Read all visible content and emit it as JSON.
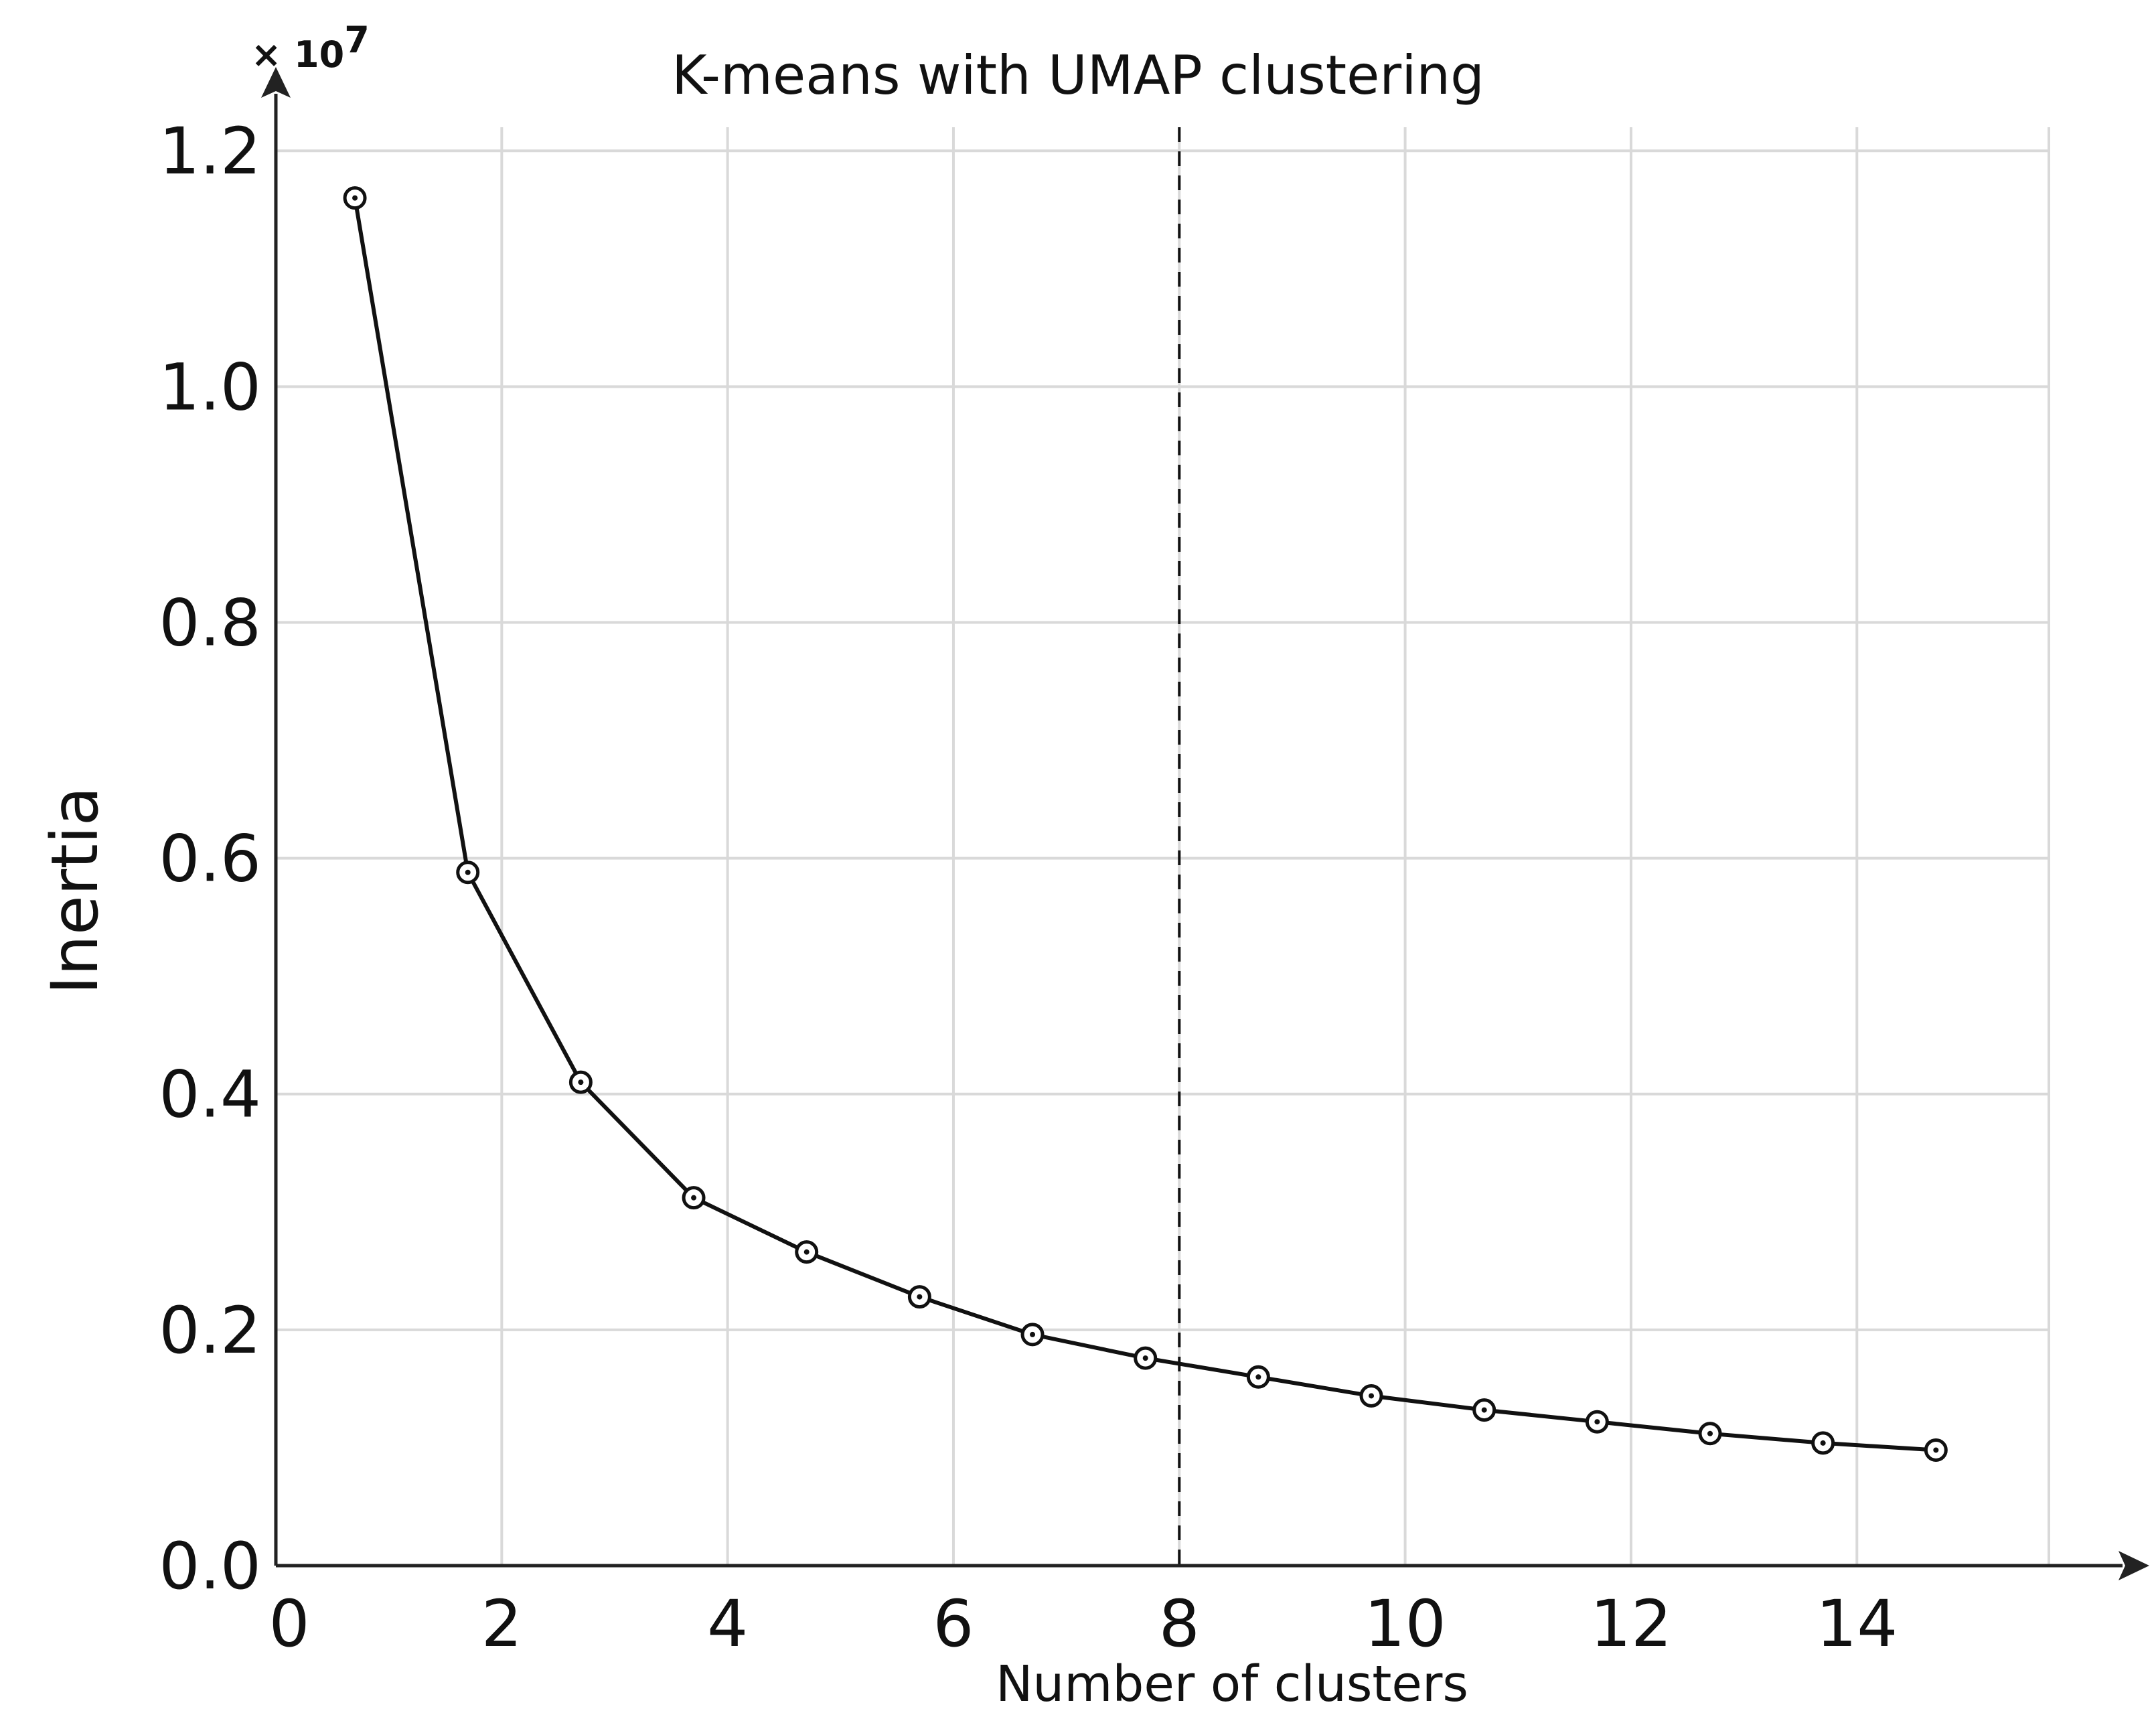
{
  "chart_data": {
    "type": "line",
    "title": "K-means with UMAP clustering",
    "xlabel": "Number of clusters",
    "ylabel": "Inertia",
    "y_multiplier_label": "× 10",
    "y_multiplier_exponent": "7",
    "xlim": [
      0,
      15.7
    ],
    "ylim": [
      0,
      1.22
    ],
    "xticks": [
      0,
      2,
      4,
      6,
      8,
      10,
      12,
      14
    ],
    "yticks": [
      0.0,
      0.2,
      0.4,
      0.6,
      0.8,
      1.0,
      1.2
    ],
    "xtick_labels": [
      "0",
      "2",
      "4",
      "6",
      "8",
      "10",
      "12",
      "14"
    ],
    "ytick_labels": [
      "0.0",
      "0.2",
      "0.4",
      "0.6",
      "0.8",
      "1.0",
      "1.2"
    ],
    "grid": true,
    "reference_line_x": 8,
    "series": [
      {
        "x": [
          0.7,
          1.7,
          2.7,
          3.7,
          4.7,
          5.7,
          6.7,
          7.7,
          8.7,
          9.7,
          10.7,
          11.7,
          12.7,
          13.7,
          14.7
        ],
        "values": [
          1.16,
          0.588,
          0.41,
          0.312,
          0.266,
          0.228,
          0.196,
          0.176,
          0.16,
          0.144,
          0.132,
          0.122,
          0.112,
          0.104,
          0.098
        ],
        "marker": "circle-dot",
        "color": "#111111"
      }
    ]
  }
}
